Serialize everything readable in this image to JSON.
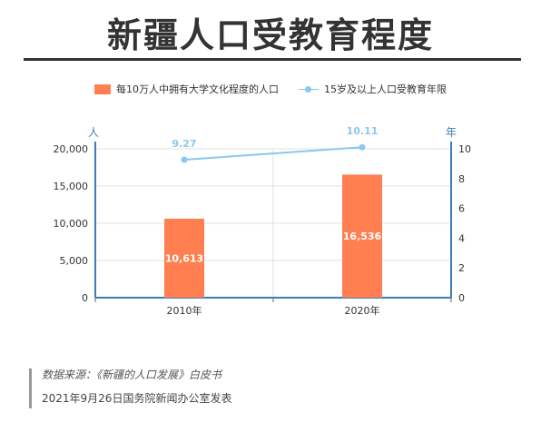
{
  "title": "新疆人口受教育程度",
  "legend": {
    "bar_label": "每10万人中拥有大学文化程度的人口",
    "line_label": "15岁及以上人口受教育年限"
  },
  "colors": {
    "bar": "#FF7F50",
    "line": "#89C8F0",
    "axis": "#3A7DBD",
    "grid": "#e0e0e0"
  },
  "chart_data": {
    "type": "bar",
    "categories": [
      "2010年",
      "2020年"
    ],
    "series": [
      {
        "name": "每10万人中拥有大学文化程度的人口",
        "type": "bar",
        "axis": "left",
        "values": [
          10613,
          16536
        ],
        "labels": [
          "10,613",
          "16,536"
        ]
      },
      {
        "name": "15岁及以上人口受教育年限",
        "type": "line",
        "axis": "right",
        "values": [
          9.27,
          10.11
        ],
        "labels": [
          "9.27",
          "10.11"
        ]
      }
    ],
    "y_left": {
      "unit": "人",
      "ylim": [
        0,
        20000
      ],
      "ticks": [
        0,
        5000,
        10000,
        15000,
        20000
      ],
      "tick_labels": [
        "0",
        "5,000",
        "10,000",
        "15,000",
        "20,000"
      ]
    },
    "y_right": {
      "unit": "年",
      "ylim": [
        0,
        10
      ],
      "ticks": [
        0,
        2,
        4,
        6,
        8,
        10
      ],
      "tick_labels": [
        "0",
        "2",
        "4",
        "6",
        "8",
        "10"
      ]
    },
    "grid": true,
    "legend_position": "top"
  },
  "source": {
    "line1": "数据来源：《新疆的人口发展》白皮书",
    "line2": "2021年9月26日国务院新闻办公室发表"
  }
}
